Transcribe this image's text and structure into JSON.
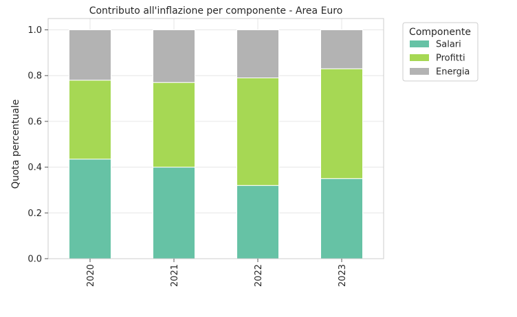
{
  "chart_data": {
    "type": "bar",
    "stacked": true,
    "title": "Contributo all'inflazione per componente - Area Euro",
    "xlabel": "",
    "ylabel": "Quota percentuale",
    "categories": [
      "2020",
      "2021",
      "2022",
      "2023"
    ],
    "ylim": [
      0,
      1.0
    ],
    "yticks": [
      "0.0",
      "0.2",
      "0.4",
      "0.6",
      "0.8",
      "1.0"
    ],
    "ytick_values": [
      0.0,
      0.2,
      0.4,
      0.6,
      0.8,
      1.0
    ],
    "grid": true,
    "legend": {
      "title": "Componente",
      "placement": "outside-top-right"
    },
    "series": [
      {
        "name": "Salari",
        "color": "#66c2a5",
        "values": [
          0.435,
          0.4,
          0.32,
          0.35
        ]
      },
      {
        "name": "Profitti",
        "color": "#a6d854",
        "values": [
          0.345,
          0.37,
          0.47,
          0.48
        ]
      },
      {
        "name": "Energia",
        "color": "#b3b3b3",
        "values": [
          0.22,
          0.23,
          0.21,
          0.17
        ]
      }
    ]
  }
}
